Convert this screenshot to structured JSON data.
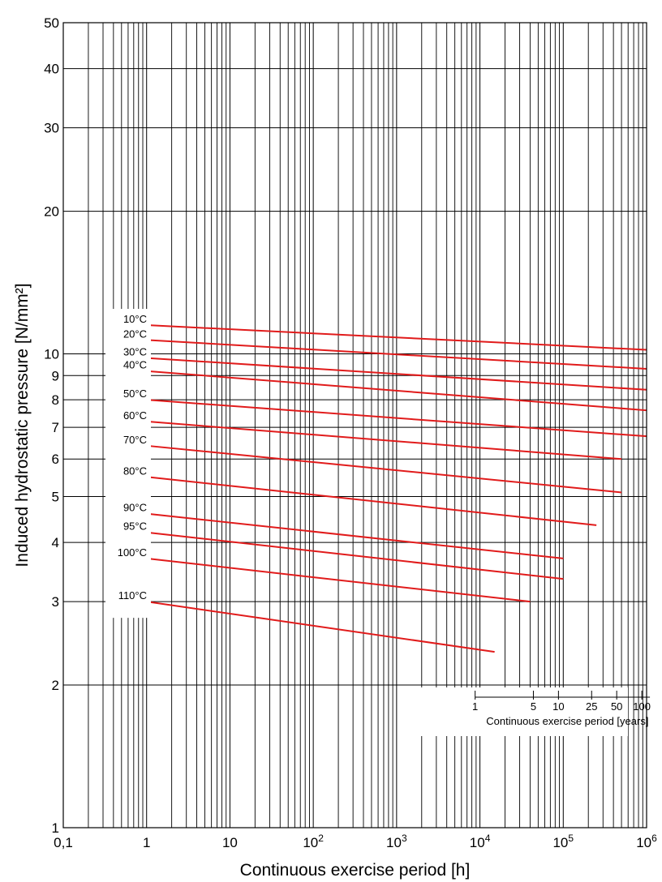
{
  "chart_data": {
    "type": "line",
    "title": "",
    "xlabel": "Continuous exercise period [h]",
    "ylabel": "Induced hydrostatic pressure [N/mm²]",
    "x_scale": "log",
    "y_scale": "log",
    "xlim": [
      0.1,
      1000000
    ],
    "ylim": [
      1,
      50
    ],
    "grid": true,
    "x_ticks": [
      {
        "value": 0.1,
        "base": "0,1",
        "exp": ""
      },
      {
        "value": 1,
        "base": "1",
        "exp": ""
      },
      {
        "value": 10,
        "base": "10",
        "exp": ""
      },
      {
        "value": 100,
        "base": "10",
        "exp": "2"
      },
      {
        "value": 1000,
        "base": "10",
        "exp": "3"
      },
      {
        "value": 10000,
        "base": "10",
        "exp": "4"
      },
      {
        "value": 100000,
        "base": "10",
        "exp": "5"
      },
      {
        "value": 1000000,
        "base": "10",
        "exp": "6"
      }
    ],
    "y_ticks": [
      {
        "value": 1,
        "label": "1"
      },
      {
        "value": 2,
        "label": "2"
      },
      {
        "value": 3,
        "label": "3"
      },
      {
        "value": 4,
        "label": "4"
      },
      {
        "value": 5,
        "label": "5"
      },
      {
        "value": 6,
        "label": "6"
      },
      {
        "value": 7,
        "label": "7"
      },
      {
        "value": 8,
        "label": "8"
      },
      {
        "value": 9,
        "label": "9"
      },
      {
        "value": 10,
        "label": "10"
      },
      {
        "value": 20,
        "label": "20"
      },
      {
        "value": 30,
        "label": "30"
      },
      {
        "value": 40,
        "label": "40"
      },
      {
        "value": 50,
        "label": "50"
      }
    ],
    "series": [
      {
        "name": "10°C",
        "x": [
          1,
          1000000
        ],
        "y": [
          11.5,
          10.2
        ]
      },
      {
        "name": "20°C",
        "x": [
          1,
          1000000
        ],
        "y": [
          10.7,
          9.3
        ]
      },
      {
        "name": "30°C",
        "x": [
          1,
          1000000
        ],
        "y": [
          9.8,
          8.4
        ]
      },
      {
        "name": "40°C",
        "x": [
          1,
          1000000
        ],
        "y": [
          9.2,
          7.6
        ]
      },
      {
        "name": "50°C",
        "x": [
          1,
          1000000
        ],
        "y": [
          8.0,
          6.7
        ]
      },
      {
        "name": "60°C",
        "x": [
          1,
          500000
        ],
        "y": [
          7.2,
          6.0
        ]
      },
      {
        "name": "70°C",
        "x": [
          1,
          500000
        ],
        "y": [
          6.4,
          5.1
        ]
      },
      {
        "name": "80°C",
        "x": [
          1,
          250000
        ],
        "y": [
          5.5,
          4.35
        ]
      },
      {
        "name": "90°C",
        "x": [
          1,
          100000
        ],
        "y": [
          4.6,
          3.7
        ]
      },
      {
        "name": "95°C",
        "x": [
          1,
          100000
        ],
        "y": [
          4.2,
          3.35
        ]
      },
      {
        "name": "100°C",
        "x": [
          1,
          40000
        ],
        "y": [
          3.7,
          3.0
        ]
      },
      {
        "name": "110°C",
        "x": [
          1,
          15000
        ],
        "y": [
          3.0,
          2.35
        ]
      }
    ],
    "secondary_x_axis": {
      "label": "Continuous exercise period [years]",
      "ticks": [
        {
          "years": 1,
          "label": "1"
        },
        {
          "years": 5,
          "label": "5"
        },
        {
          "years": 10,
          "label": "10"
        },
        {
          "years": 25,
          "label": "25"
        },
        {
          "years": 50,
          "label": "50"
        },
        {
          "years": 100,
          "label": "100"
        }
      ]
    },
    "colors": {
      "series": "#e11b1b",
      "grid": "#000000"
    }
  }
}
